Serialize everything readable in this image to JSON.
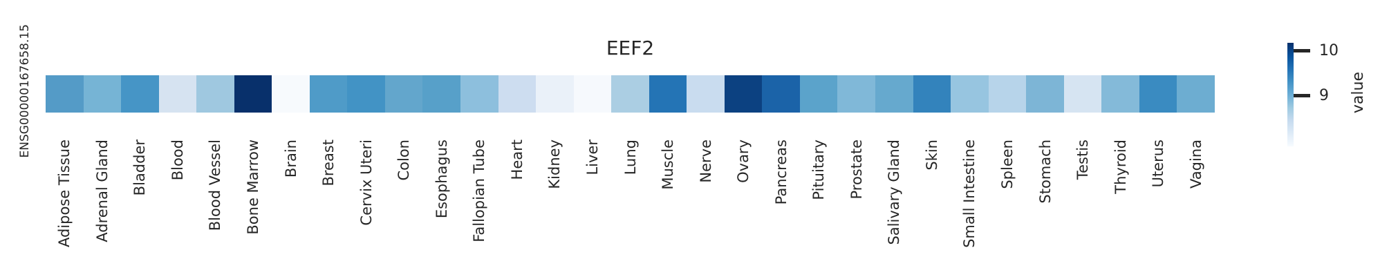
{
  "figure": {
    "title": "EEF2",
    "row_label": "ENSG00000167658.15",
    "background": "#ffffff",
    "text_color": "#262626"
  },
  "colorbar": {
    "label": "value",
    "ticks": [
      "10",
      "9"
    ],
    "gradient_top_to_bottom": [
      "#08306b",
      "#08519c",
      "#2171b5",
      "#4292c6",
      "#6baed6",
      "#9ecae1",
      "#c6dbef",
      "#deebf7",
      "#f7fbff"
    ]
  },
  "chart_data": {
    "type": "heatmap",
    "title": "EEF2",
    "rows": [
      "ENSG00000167658.15"
    ],
    "categories": [
      "Adipose Tissue",
      "Adrenal Gland",
      "Bladder",
      "Blood",
      "Blood Vessel",
      "Bone Marrow",
      "Brain",
      "Breast",
      "Cervix Uteri",
      "Colon",
      "Esophagus",
      "Fallopian Tube",
      "Heart",
      "Kidney",
      "Liver",
      "Lung",
      "Muscle",
      "Nerve",
      "Ovary",
      "Pancreas",
      "Pituitary",
      "Prostate",
      "Salivary Gland",
      "Skin",
      "Small Intestine",
      "Spleen",
      "Stomach",
      "Testis",
      "Thyroid",
      "Uterus",
      "Vagina"
    ],
    "series": [
      {
        "name": "ENSG00000167658.15",
        "values": [
          9.1,
          8.9,
          9.25,
          8.1,
          8.65,
          10.2,
          7.9,
          9.2,
          9.25,
          9.05,
          9.15,
          8.8,
          8.25,
          8.0,
          7.9,
          8.65,
          9.6,
          8.35,
          10.0,
          9.7,
          9.1,
          8.9,
          9.05,
          9.45,
          8.75,
          8.55,
          8.9,
          8.2,
          8.85,
          9.35,
          9.0
        ]
      }
    ],
    "cell_colors": [
      "#549bc7",
      "#76b4d5",
      "#4695c6",
      "#d6e3f1",
      "#9fc8e0",
      "#08306b",
      "#f7fafd",
      "#4f9bc8",
      "#4293c5",
      "#63a6cc",
      "#57a0c9",
      "#8dbfdd",
      "#cdddf0",
      "#eaf1f9",
      "#f6f9fd",
      "#abcee3",
      "#2474b5",
      "#c9dcef",
      "#0c4181",
      "#1b63a8",
      "#5ba3cb",
      "#80b8d8",
      "#66a9ce",
      "#3383bc",
      "#97c5e0",
      "#b7d4ea",
      "#7db5d6",
      "#d6e4f2",
      "#84bad9",
      "#3a8bc1",
      "#6dadd1"
    ],
    "colormap": "Blues",
    "value_axis_label": "value",
    "colorbar_tick_values": [
      9,
      10
    ],
    "value_range_estimate": [
      7.9,
      10.2
    ],
    "legend_position": "right",
    "grid": false
  }
}
